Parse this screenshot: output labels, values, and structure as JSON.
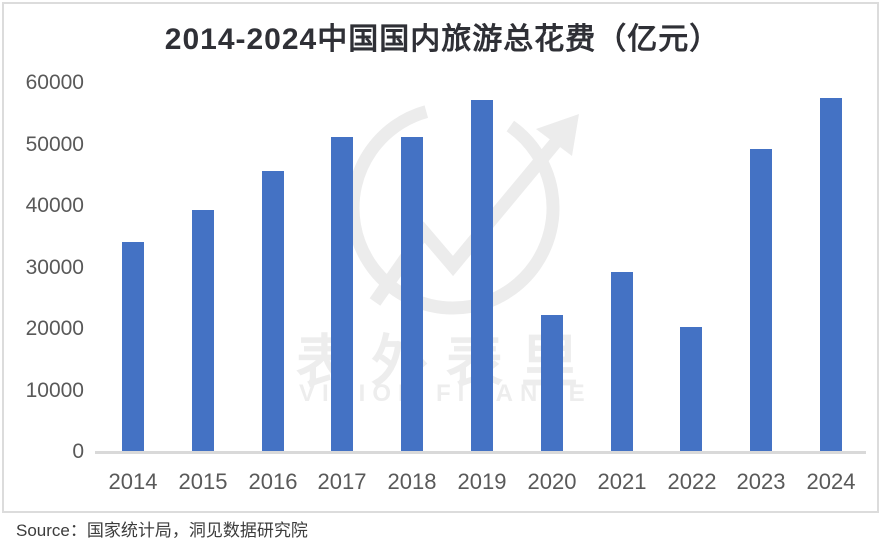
{
  "title": "2014-2024中国国内旅游总花费（亿元）",
  "source_note": "Source：国家统计局，洞见数据研究院",
  "watermark": {
    "cn": "表外表里",
    "en": "VISION FINANCE",
    "logo": "circle-trend-arrow"
  },
  "colors": {
    "bar": "#4472C4",
    "axis_line": "#D9D9D9",
    "tick_label": "#595959",
    "title": "#2F3036",
    "frame_border": "#DCDCDC",
    "watermark": "#EDEDED",
    "source_text": "#3C3C3C",
    "background": "#FFFFFF"
  },
  "chart_data": {
    "type": "bar",
    "title": "2014-2024中国国内旅游总花费（亿元）",
    "categories": [
      "2014",
      "2015",
      "2016",
      "2017",
      "2018",
      "2019",
      "2020",
      "2021",
      "2022",
      "2023",
      "2024"
    ],
    "values": [
      34200,
      39400,
      45700,
      51200,
      51200,
      57300,
      22300,
      29200,
      20400,
      49200,
      57600
    ],
    "xlabel": "",
    "ylabel": "",
    "ylim": [
      0,
      60000
    ],
    "yticks": [
      0,
      10000,
      20000,
      30000,
      40000,
      50000,
      60000
    ],
    "grid": false,
    "legend": false,
    "unit": "亿元"
  }
}
